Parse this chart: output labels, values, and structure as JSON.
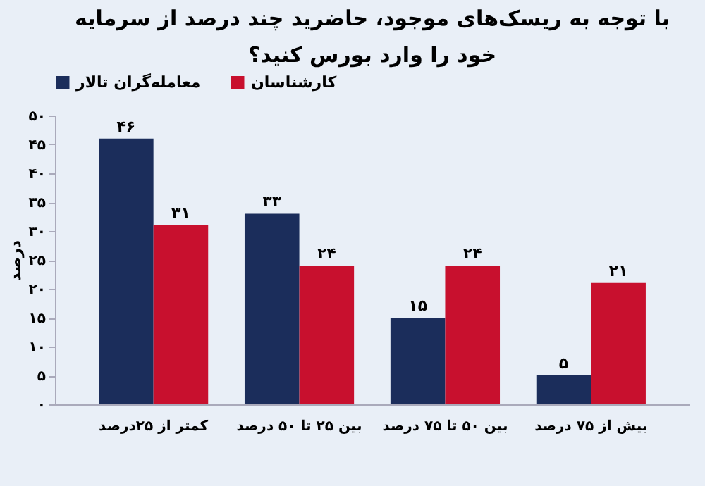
{
  "chart_data": {
    "type": "bar",
    "title": "با توجه به ریسک‌های موجود، حاضرید چند درصد از سرمایه خود را وارد بورس کنید؟",
    "ylabel": "درصد",
    "categories": [
      "کمتر از ۲۵درصد",
      "بین ۲۵ تا ۵۰ درصد",
      "بین ۵۰ تا ۷۵ درصد",
      "بیش از ۷۵ درصد"
    ],
    "series": [
      {
        "name": "معامله‌گران تالار",
        "color": "#1b2d5b",
        "values": [
          46,
          33,
          15,
          5
        ],
        "value_labels": [
          "۴۶",
          "۳۳",
          "۱۵",
          "۵"
        ]
      },
      {
        "name": "کارشناسان",
        "color": "#c8102e",
        "values": [
          31,
          24,
          24,
          21
        ],
        "value_labels": [
          "۳۱",
          "۲۴",
          "۲۴",
          "۲۱"
        ]
      }
    ],
    "ylim": [
      0,
      50
    ],
    "yticks": [
      {
        "value": 0,
        "label": "۰"
      },
      {
        "value": 5,
        "label": "۵"
      },
      {
        "value": 10,
        "label": "۱۰"
      },
      {
        "value": 15,
        "label": "۱۵"
      },
      {
        "value": 20,
        "label": "۲۰"
      },
      {
        "value": 25,
        "label": "۲۵"
      },
      {
        "value": 30,
        "label": "۳۰"
      },
      {
        "value": 35,
        "label": "۳۵"
      },
      {
        "value": 40,
        "label": "۴۰"
      },
      {
        "value": 45,
        "label": "۴۵"
      },
      {
        "value": 50,
        "label": "۵۰"
      }
    ],
    "grid": false,
    "legend": "top"
  }
}
